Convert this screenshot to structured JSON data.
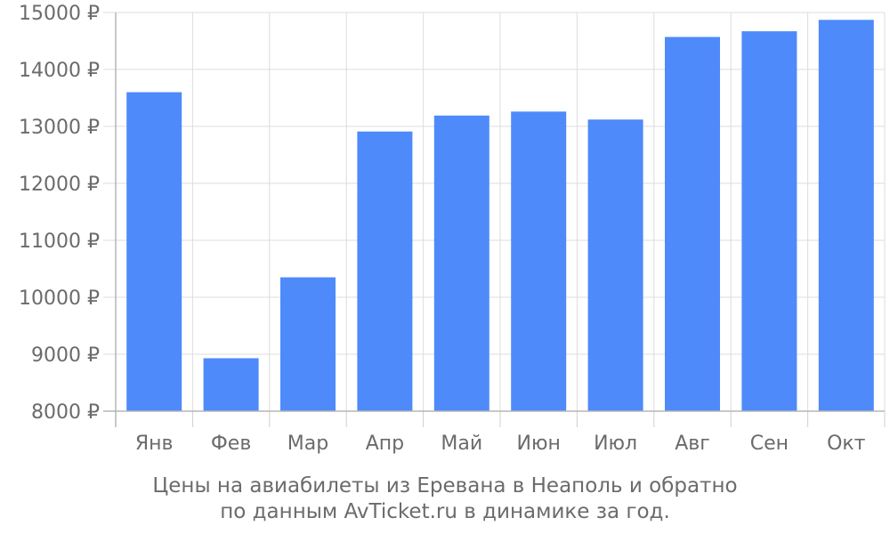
{
  "chart_data": {
    "type": "bar",
    "categories": [
      "Янв",
      "Фев",
      "Мар",
      "Апр",
      "Май",
      "Июн",
      "Июл",
      "Авг",
      "Сен",
      "Окт"
    ],
    "values": [
      13600,
      8930,
      10350,
      12910,
      13190,
      13260,
      13120,
      14570,
      14670,
      14870
    ],
    "ylim": [
      8000,
      15000
    ],
    "yticks": [
      8000,
      9000,
      10000,
      11000,
      12000,
      13000,
      14000,
      15000
    ],
    "ytick_labels": [
      "8000 ₽",
      "9000 ₽",
      "10000 ₽",
      "11000 ₽",
      "12000 ₽",
      "13000 ₽",
      "14000 ₽",
      "15000 ₽"
    ],
    "grid": true,
    "bar_color": "#4e8af9",
    "caption_lines": [
      "Цены на авиабилеты из Еревана в Неаполь и обратно",
      "по данным AvTicket.ru в динамике за год."
    ]
  }
}
